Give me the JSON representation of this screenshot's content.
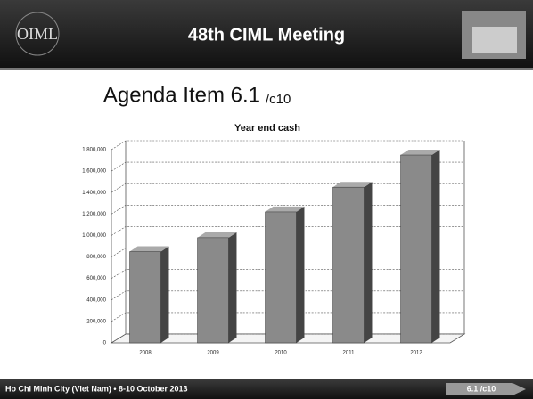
{
  "header": {
    "logo": "OIML",
    "title": "48th CIML Meeting"
  },
  "slide": {
    "title": "Agenda Item 6.1",
    "subtitle": "/c10"
  },
  "chart_data": {
    "type": "bar",
    "title": "Year end cash",
    "categories": [
      "2008",
      "2009",
      "2010",
      "2011",
      "2012"
    ],
    "values": [
      850000,
      980000,
      1220000,
      1450000,
      1750000
    ],
    "color": "#8a8a8a",
    "ylim": [
      0,
      1800000
    ],
    "yticks": [
      0,
      {
        "value": 200000,
        "label": "200,000"
      },
      {
        "value": 400000,
        "label": "400,000"
      },
      {
        "value": 600000,
        "label": "600,000"
      },
      {
        "value": 800000,
        "label": "800,000"
      },
      {
        "value": 1000000,
        "label": "1,000,000"
      },
      {
        "value": 1200000,
        "label": "1,200,000"
      },
      {
        "value": 1400000,
        "label": "1,400,000"
      },
      {
        "value": 1600000,
        "label": "1,600,000"
      },
      {
        "value": 1800000,
        "label": "1,800,000"
      }
    ],
    "grid": true
  },
  "footer": {
    "location": "Ho Chi Minh City (Viet Nam) • 8-10 October 2013",
    "button": "6.1 /c10"
  }
}
